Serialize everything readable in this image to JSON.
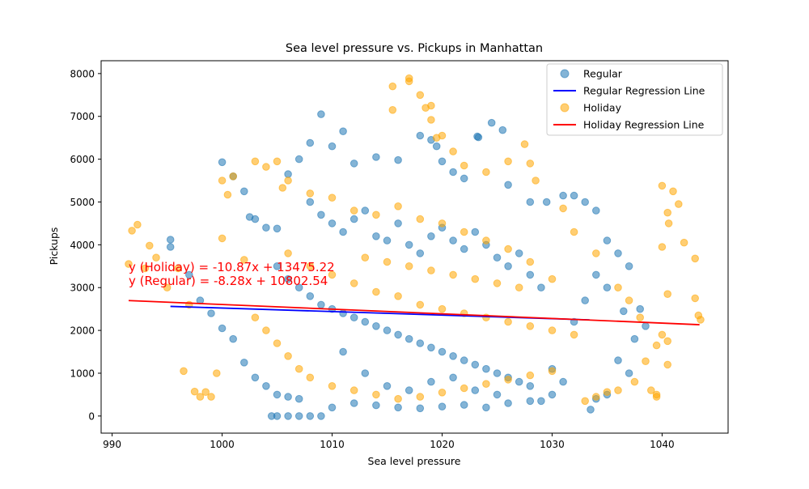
{
  "chart_data": {
    "type": "scatter",
    "title": "Sea level pressure vs. Pickups in Manhattan",
    "xlabel": "Sea level pressure",
    "ylabel": "Pickups",
    "xlim": [
      989,
      1046
    ],
    "ylim": [
      -400,
      8300
    ],
    "xticks": [
      990,
      1000,
      1010,
      1020,
      1030,
      1040
    ],
    "yticks": [
      0,
      1000,
      2000,
      3000,
      4000,
      5000,
      6000,
      7000,
      8000
    ],
    "grid": false,
    "legend_position": "top-right",
    "legend": [
      {
        "label": "Regular",
        "kind": "marker",
        "color": "#1f77b4"
      },
      {
        "label": "Regular Regression Line",
        "kind": "line",
        "color": "#0000ff"
      },
      {
        "label": "Holiday",
        "kind": "marker",
        "color": "#ffa500"
      },
      {
        "label": "Holiday Regression Line",
        "kind": "line",
        "color": "#ff0000"
      }
    ],
    "series": [
      {
        "name": "Regular",
        "color": "#1f77b4",
        "alpha": 0.55,
        "points": [
          [
            995.3,
            4120
          ],
          [
            995.3,
            3950
          ],
          [
            1000,
            5930
          ],
          [
            1001,
            5600
          ],
          [
            1002,
            5250
          ],
          [
            1002.5,
            4650
          ],
          [
            1003,
            4600
          ],
          [
            1004,
            4400
          ],
          [
            1005,
            4380
          ],
          [
            1006,
            5650
          ],
          [
            1007,
            6000
          ],
          [
            1008,
            6380
          ],
          [
            1009,
            7050
          ],
          [
            1010,
            6300
          ],
          [
            1011,
            6650
          ],
          [
            1012,
            5900
          ],
          [
            1014,
            6050
          ],
          [
            1016,
            5980
          ],
          [
            1018,
            6550
          ],
          [
            1019,
            6450
          ],
          [
            1019.5,
            6300
          ],
          [
            1020,
            5950
          ],
          [
            1021,
            5700
          ],
          [
            1022,
            5550
          ],
          [
            1023.2,
            6530
          ],
          [
            1023.3,
            6510
          ],
          [
            1024.5,
            6850
          ],
          [
            1025.5,
            6680
          ],
          [
            1026,
            5400
          ],
          [
            1028,
            5000
          ],
          [
            1029.5,
            5000
          ],
          [
            1031,
            5150
          ],
          [
            1032,
            5150
          ],
          [
            1033,
            5000
          ],
          [
            1034,
            4800
          ],
          [
            1035,
            4100
          ],
          [
            1036,
            3800
          ],
          [
            1037,
            3500
          ],
          [
            1038,
            2500
          ],
          [
            1038.5,
            2100
          ],
          [
            1036.5,
            2450
          ],
          [
            1037.5,
            1800
          ],
          [
            1036,
            1300
          ],
          [
            1035,
            500
          ],
          [
            1034,
            400
          ],
          [
            1033.5,
            150
          ],
          [
            1037,
            1000
          ],
          [
            1031,
            800
          ],
          [
            1030,
            500
          ],
          [
            1029,
            350
          ],
          [
            1008,
            0
          ],
          [
            1007,
            0
          ],
          [
            1006,
            0
          ],
          [
            1005,
            0
          ],
          [
            1004.5,
            0
          ],
          [
            1009,
            0
          ],
          [
            997,
            3300
          ],
          [
            998,
            2700
          ],
          [
            999,
            2400
          ],
          [
            1000,
            2050
          ],
          [
            1001,
            1800
          ],
          [
            1002,
            1250
          ],
          [
            1003,
            900
          ],
          [
            1004,
            700
          ],
          [
            1005,
            500
          ],
          [
            1006,
            450
          ],
          [
            1007,
            400
          ],
          [
            1010,
            200
          ],
          [
            1012,
            300
          ],
          [
            1014,
            250
          ],
          [
            1016,
            200
          ],
          [
            1018,
            180
          ],
          [
            1020,
            220
          ],
          [
            1022,
            260
          ],
          [
            1024,
            200
          ],
          [
            1026,
            300
          ],
          [
            1028,
            350
          ],
          [
            1030,
            1100
          ],
          [
            1032,
            2200
          ],
          [
            1033,
            2700
          ],
          [
            1034,
            3300
          ],
          [
            1035,
            3000
          ],
          [
            1008,
            5000
          ],
          [
            1009,
            4700
          ],
          [
            1010,
            4500
          ],
          [
            1011,
            4300
          ],
          [
            1012,
            4600
          ],
          [
            1013,
            4800
          ],
          [
            1014,
            4200
          ],
          [
            1015,
            4100
          ],
          [
            1016,
            4500
          ],
          [
            1017,
            4000
          ],
          [
            1018,
            3800
          ],
          [
            1019,
            4200
          ],
          [
            1020,
            4400
          ],
          [
            1021,
            4100
          ],
          [
            1022,
            3900
          ],
          [
            1023,
            4300
          ],
          [
            1024,
            4000
          ],
          [
            1025,
            3700
          ],
          [
            1026,
            3500
          ],
          [
            1027,
            3800
          ],
          [
            1028,
            3300
          ],
          [
            1029,
            3000
          ],
          [
            1005,
            3500
          ],
          [
            1006,
            3200
          ],
          [
            1007,
            3000
          ],
          [
            1008,
            2800
          ],
          [
            1009,
            2600
          ],
          [
            1010,
            2500
          ],
          [
            1011,
            2400
          ],
          [
            1012,
            2300
          ],
          [
            1013,
            2200
          ],
          [
            1014,
            2100
          ],
          [
            1015,
            2000
          ],
          [
            1016,
            1900
          ],
          [
            1017,
            1800
          ],
          [
            1018,
            1700
          ],
          [
            1019,
            1600
          ],
          [
            1020,
            1500
          ],
          [
            1021,
            1400
          ],
          [
            1022,
            1300
          ],
          [
            1023,
            1200
          ],
          [
            1024,
            1100
          ],
          [
            1025,
            1000
          ],
          [
            1026,
            900
          ],
          [
            1027,
            800
          ],
          [
            1028,
            700
          ],
          [
            1011,
            1500
          ],
          [
            1013,
            1000
          ],
          [
            1015,
            700
          ],
          [
            1017,
            600
          ],
          [
            1019,
            800
          ],
          [
            1021,
            900
          ],
          [
            1023,
            600
          ],
          [
            1025,
            500
          ]
        ]
      },
      {
        "name": "Holiday",
        "color": "#ffa500",
        "alpha": 0.55,
        "points": [
          [
            991.5,
            3550
          ],
          [
            991.8,
            4330
          ],
          [
            992.3,
            4470
          ],
          [
            993,
            3450
          ],
          [
            993.4,
            3980
          ],
          [
            994,
            3700
          ],
          [
            995,
            3000
          ],
          [
            996,
            3450
          ],
          [
            996.5,
            1050
          ],
          [
            997,
            2600
          ],
          [
            997.5,
            570
          ],
          [
            998,
            450
          ],
          [
            998.5,
            560
          ],
          [
            999,
            450
          ],
          [
            999.5,
            1000
          ],
          [
            1000,
            4150
          ],
          [
            1000,
            5500
          ],
          [
            1000.5,
            5170
          ],
          [
            1001,
            5600
          ],
          [
            1002,
            3650
          ],
          [
            1003,
            5950
          ],
          [
            1004,
            5820
          ],
          [
            1005,
            5950
          ],
          [
            1005.5,
            5330
          ],
          [
            1015.5,
            7700
          ],
          [
            1015.5,
            7150
          ],
          [
            1017,
            7890
          ],
          [
            1017,
            7820
          ],
          [
            1018,
            7500
          ],
          [
            1018.5,
            7200
          ],
          [
            1019,
            7250
          ],
          [
            1019,
            6920
          ],
          [
            1019.5,
            6500
          ],
          [
            1020,
            6550
          ],
          [
            1021,
            6180
          ],
          [
            1022,
            5850
          ],
          [
            1024,
            5700
          ],
          [
            1026,
            5950
          ],
          [
            1027.5,
            6350
          ],
          [
            1028,
            5900
          ],
          [
            1028.5,
            5500
          ],
          [
            1031,
            4850
          ],
          [
            1032,
            4300
          ],
          [
            1034,
            3800
          ],
          [
            1036,
            3000
          ],
          [
            1037,
            2700
          ],
          [
            1038,
            2300
          ],
          [
            1038.5,
            1280
          ],
          [
            1037.5,
            800
          ],
          [
            1036,
            600
          ],
          [
            1035,
            560
          ],
          [
            1034,
            450
          ],
          [
            1033,
            350
          ],
          [
            1040,
            5380
          ],
          [
            1040.5,
            4750
          ],
          [
            1040.6,
            4500
          ],
          [
            1041,
            5250
          ],
          [
            1041.5,
            4950
          ],
          [
            1042,
            4050
          ],
          [
            1043,
            3680
          ],
          [
            1043,
            2750
          ],
          [
            1043.3,
            2350
          ],
          [
            1043.5,
            2250
          ],
          [
            1040,
            3950
          ],
          [
            1040.5,
            2850
          ],
          [
            1040,
            1900
          ],
          [
            1040.5,
            1750
          ],
          [
            1040.5,
            1200
          ],
          [
            1039.5,
            1650
          ],
          [
            1039,
            600
          ],
          [
            1039.5,
            500
          ],
          [
            1039.5,
            450
          ],
          [
            1006,
            5500
          ],
          [
            1008,
            5200
          ],
          [
            1010,
            5100
          ],
          [
            1012,
            4800
          ],
          [
            1014,
            4700
          ],
          [
            1016,
            4900
          ],
          [
            1018,
            4600
          ],
          [
            1020,
            4500
          ],
          [
            1022,
            4300
          ],
          [
            1024,
            4100
          ],
          [
            1026,
            3900
          ],
          [
            1028,
            3600
          ],
          [
            1030,
            3200
          ],
          [
            1006,
            3800
          ],
          [
            1008,
            3500
          ],
          [
            1010,
            3300
          ],
          [
            1012,
            3100
          ],
          [
            1014,
            2900
          ],
          [
            1016,
            2800
          ],
          [
            1018,
            2600
          ],
          [
            1020,
            2500
          ],
          [
            1022,
            2400
          ],
          [
            1024,
            2300
          ],
          [
            1026,
            2200
          ],
          [
            1028,
            2100
          ],
          [
            1030,
            2000
          ],
          [
            1032,
            1900
          ],
          [
            1003,
            2300
          ],
          [
            1004,
            2000
          ],
          [
            1005,
            1700
          ],
          [
            1006,
            1400
          ],
          [
            1007,
            1100
          ],
          [
            1008,
            900
          ],
          [
            1010,
            700
          ],
          [
            1012,
            600
          ],
          [
            1014,
            500
          ],
          [
            1016,
            400
          ],
          [
            1018,
            450
          ],
          [
            1020,
            550
          ],
          [
            1022,
            650
          ],
          [
            1024,
            750
          ],
          [
            1026,
            850
          ],
          [
            1028,
            950
          ],
          [
            1030,
            1050
          ],
          [
            1013,
            3700
          ],
          [
            1015,
            3600
          ],
          [
            1017,
            3500
          ],
          [
            1019,
            3400
          ],
          [
            1021,
            3300
          ],
          [
            1023,
            3200
          ],
          [
            1025,
            3100
          ],
          [
            1027,
            3000
          ]
        ]
      }
    ],
    "regressions": [
      {
        "name": "Regular Regression Line",
        "color": "#0000ff",
        "slope": -8.28,
        "intercept": 10802.54,
        "x_range": [
          995.3,
          1033.4
        ]
      },
      {
        "name": "Holiday Regression Line",
        "color": "#ff0000",
        "slope": -10.87,
        "intercept": 13475.22,
        "x_range": [
          991.5,
          1043.4
        ]
      }
    ],
    "annotations": [
      {
        "text": "y (Holiday) = -10.87x + 13475.22",
        "x": 991.5,
        "y": 3380,
        "color": "#ff0000"
      },
      {
        "text": "y (Regular) = -8.28x + 10802.54",
        "x": 991.5,
        "y": 3060,
        "color": "#ff0000"
      }
    ]
  }
}
